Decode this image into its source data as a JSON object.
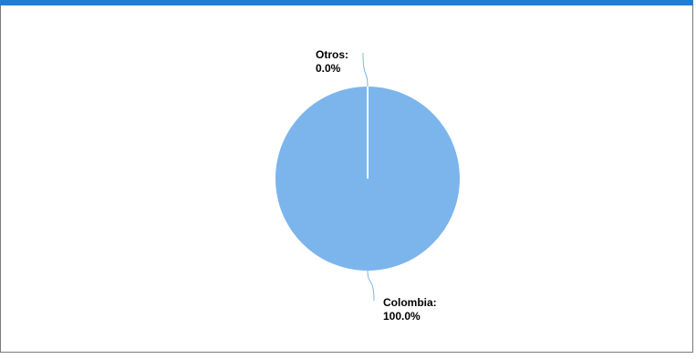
{
  "chart_data": {
    "type": "pie",
    "categories": [
      "Colombia:",
      "Otros:"
    ],
    "values": [
      100,
      0
    ],
    "value_labels": [
      "100.0%",
      "0.0%"
    ],
    "colors": [
      "#7cb5ec",
      "#ffffff"
    ]
  }
}
